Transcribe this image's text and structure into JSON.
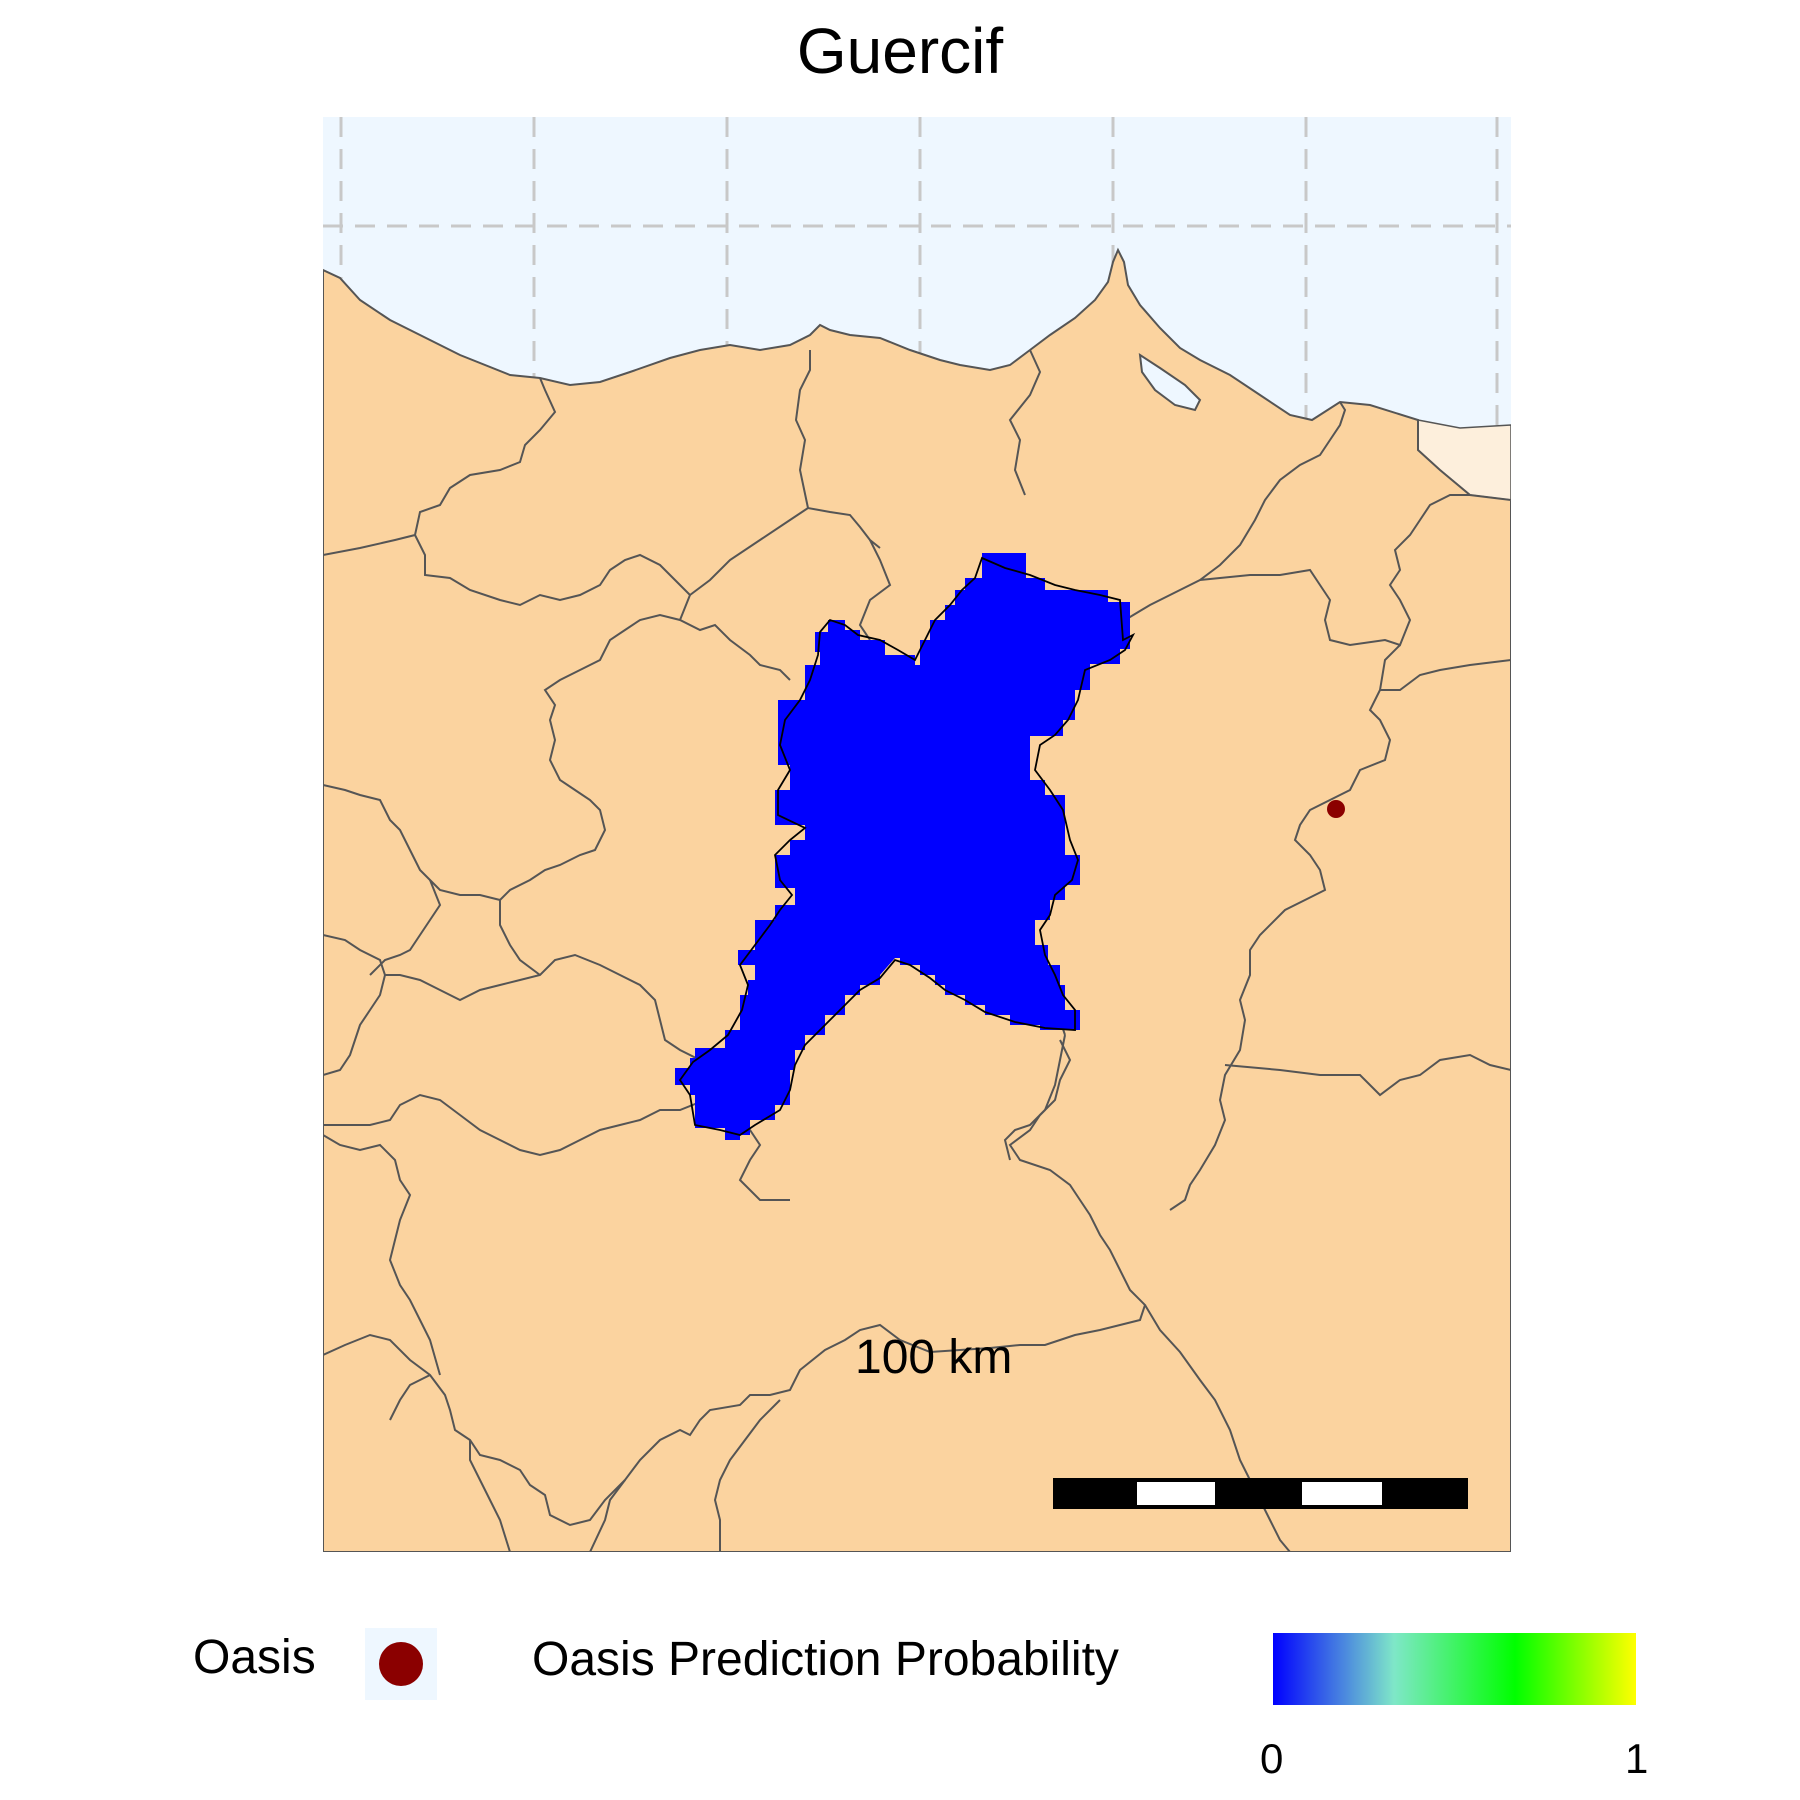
{
  "title": "Guercif",
  "scale_bar": {
    "label": "100 km"
  },
  "colors": {
    "sea": "#eef7ff",
    "land_morocco": "#fbd39f",
    "land_algeria": "#fdefdc",
    "border": "#555555",
    "grid": "#c8c8c8",
    "prediction_cell": "#0000ff",
    "oasis_point": "#8b0000"
  },
  "legend": {
    "oasis": {
      "label": "Oasis",
      "icon": "dark-red-dot"
    },
    "probability": {
      "label": "Oasis Prediction Probability",
      "min_label": "0",
      "max_label": "1",
      "gradient_colors": [
        "#0000ff",
        "#7fe7c8",
        "#00ff00",
        "#ffff00"
      ]
    }
  }
}
